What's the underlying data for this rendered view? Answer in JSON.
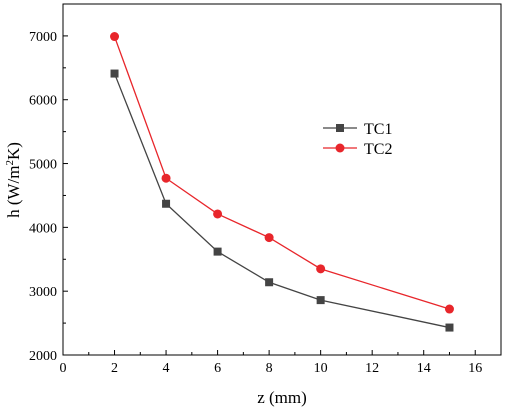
{
  "chart_data": {
    "type": "line",
    "x": [
      2,
      4,
      6,
      8,
      10,
      15
    ],
    "series": [
      {
        "name": "TC1",
        "values": [
          6410,
          4370,
          3620,
          3140,
          2860,
          2430
        ],
        "color": "#444444",
        "marker": "square"
      },
      {
        "name": "TC2",
        "values": [
          6990,
          4770,
          4210,
          3840,
          3350,
          2720
        ],
        "color": "#e8262b",
        "marker": "circle"
      }
    ],
    "xlabel": "z (mm)",
    "ylabel": "h (W/m²K)",
    "ylabel_parts": {
      "pre": "h (W/m",
      "sup": "2",
      "post": "K)"
    },
    "xlim": [
      0,
      17
    ],
    "ylim": [
      2000,
      7500
    ],
    "xticks": [
      "0",
      "2",
      "4",
      "6",
      "8",
      "10",
      "12",
      "14",
      "16"
    ],
    "yticks": [
      "2000",
      "3000",
      "4000",
      "5000",
      "6000",
      "7000"
    ],
    "grid": false,
    "legend_position": "center-right"
  }
}
